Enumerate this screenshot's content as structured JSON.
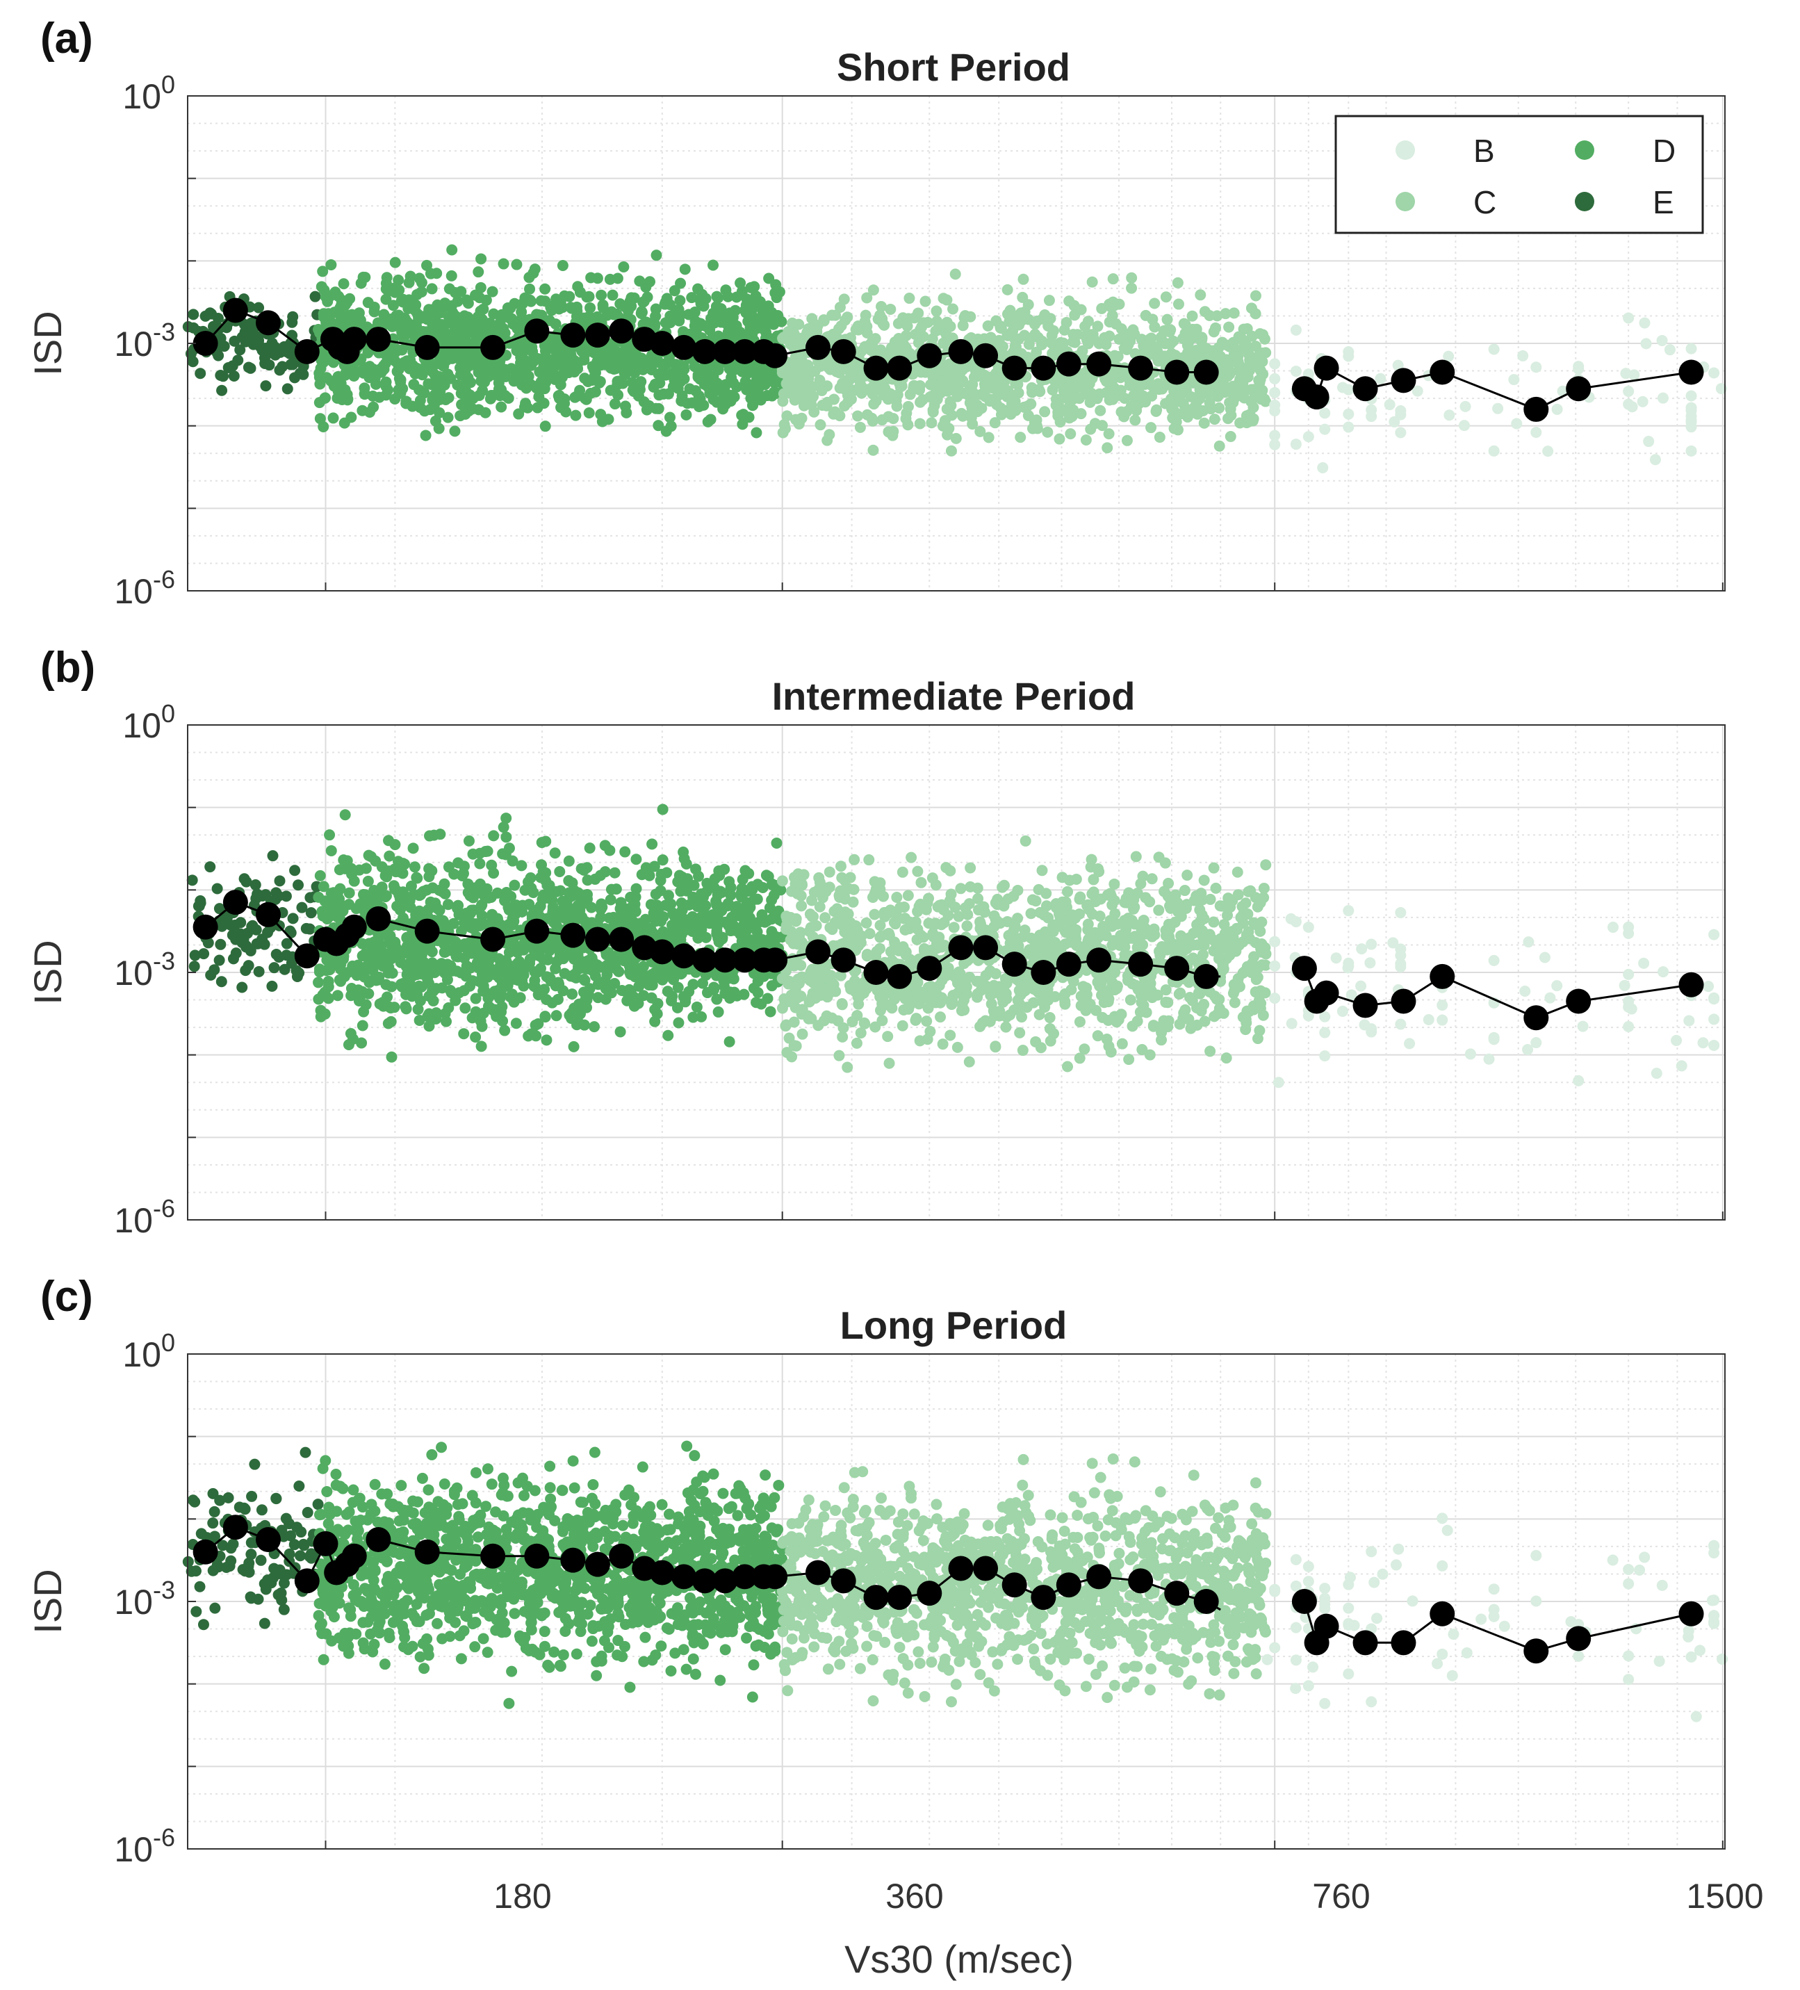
{
  "colors": {
    "B": "#d9ede0",
    "C": "#9fd5a8",
    "D": "#52ad62",
    "E": "#2e6b3c",
    "binned": "#000000"
  },
  "chart_data": [
    {
      "type": "scatter",
      "panel_label": "(a)",
      "title": "Short Period",
      "ylabel": "ISD",
      "ylim_exp": [
        -6,
        0
      ],
      "yticks": [
        {
          "base": "10",
          "exp": "0"
        },
        {
          "base": "10",
          "exp": "-3"
        },
        {
          "base": "10",
          "exp": "-6"
        }
      ],
      "scatter_clusters": [
        {
          "cls": "E",
          "x0": 146,
          "x1": 178,
          "center": -3.0,
          "spread": 0.55,
          "n": 110
        },
        {
          "cls": "D",
          "x0": 178,
          "x1": 360,
          "center": -3.05,
          "spread": 0.9,
          "n": 1400
        },
        {
          "cls": "C",
          "x0": 360,
          "x1": 750,
          "center": -3.3,
          "spread": 0.85,
          "n": 1200
        },
        {
          "cls": "B",
          "x0": 750,
          "x1": 1500,
          "center": -3.6,
          "spread": 0.85,
          "n": 90
        }
      ],
      "binned_series": [
        {
          "x": [
            150,
            157,
            165,
            175,
            182,
            184,
            186,
            188
          ],
          "log10_isd": [
            -3.0,
            -2.6,
            -2.75,
            -3.1,
            -2.95,
            -3.05,
            -3.1,
            -2.95
          ]
        },
        {
          "x": [
            195,
            210,
            232,
            248,
            262,
            272,
            282,
            292,
            300,
            310,
            320,
            330,
            340,
            350,
            356
          ],
          "log10_isd": [
            -2.95,
            -3.05,
            -3.05,
            -2.85,
            -2.9,
            -2.9,
            -2.85,
            -2.95,
            -3.0,
            -3.05,
            -3.1,
            -3.1,
            -3.1,
            -3.1,
            -3.15
          ],
          "tail": {
            "x": [
              356,
              380
            ],
            "log10_isd": [
              -3.15,
              -3.05
            ]
          }
        },
        {
          "x": [
            380,
            395,
            415,
            430,
            450,
            472,
            490,
            512,
            535,
            556,
            582,
            620,
            655,
            685
          ],
          "log10_isd": [
            -3.05,
            -3.1,
            -3.3,
            -3.3,
            -3.15,
            -3.1,
            -3.15,
            -3.3,
            -3.3,
            -3.25,
            -3.25,
            -3.3,
            -3.35,
            -3.35
          ]
        },
        {
          "x": [
            795,
            810,
            822,
            872,
            924,
            980,
            1130,
            1205,
            1430
          ],
          "log10_isd": [
            -3.55,
            -3.65,
            -3.3,
            -3.55,
            -3.45,
            -3.35,
            -3.8,
            -3.55,
            -3.35
          ]
        }
      ]
    },
    {
      "type": "scatter",
      "panel_label": "(b)",
      "title": "Intermediate Period",
      "ylabel": "ISD",
      "ylim_exp": [
        -6,
        0
      ],
      "yticks": [
        {
          "base": "10",
          "exp": "0"
        },
        {
          "base": "10",
          "exp": "-3"
        },
        {
          "base": "10",
          "exp": "-6"
        }
      ],
      "scatter_clusters": [
        {
          "cls": "E",
          "x0": 146,
          "x1": 178,
          "center": -2.4,
          "spread": 0.8,
          "n": 110
        },
        {
          "cls": "D",
          "x0": 178,
          "x1": 360,
          "center": -2.6,
          "spread": 1.15,
          "n": 1400
        },
        {
          "cls": "C",
          "x0": 360,
          "x1": 750,
          "center": -2.8,
          "spread": 1.15,
          "n": 1200
        },
        {
          "cls": "B",
          "x0": 750,
          "x1": 1500,
          "center": -3.2,
          "spread": 1.05,
          "n": 90
        }
      ],
      "binned_series": [
        {
          "x": [
            150,
            157,
            165,
            175,
            180,
            183,
            186,
            188
          ],
          "log10_isd": [
            -2.45,
            -2.15,
            -2.3,
            -2.8,
            -2.6,
            -2.65,
            -2.55,
            -2.45
          ]
        },
        {
          "x": [
            195,
            210,
            232,
            248,
            262,
            272,
            282,
            292,
            300,
            310,
            320,
            330,
            340,
            350,
            356
          ],
          "log10_isd": [
            -2.35,
            -2.5,
            -2.6,
            -2.5,
            -2.55,
            -2.6,
            -2.6,
            -2.7,
            -2.75,
            -2.8,
            -2.85,
            -2.85,
            -2.85,
            -2.85,
            -2.85
          ],
          "tail": {
            "x": [
              356,
              380
            ],
            "log10_isd": [
              -2.85,
              -2.75
            ]
          }
        },
        {
          "x": [
            380,
            395,
            415,
            430,
            450,
            472,
            490,
            512,
            535,
            556,
            582,
            620,
            655,
            685
          ],
          "log10_isd": [
            -2.75,
            -2.85,
            -3.0,
            -3.05,
            -2.95,
            -2.7,
            -2.7,
            -2.9,
            -3.0,
            -2.9,
            -2.85,
            -2.9,
            -2.95,
            -3.05
          ],
          "tail": {
            "x": [
              685,
              700
            ],
            "log10_isd": [
              -3.05,
              -3.05
            ]
          }
        },
        {
          "x": [
            795,
            810,
            822,
            872,
            924,
            980,
            1130,
            1205,
            1430
          ],
          "log10_isd": [
            -2.95,
            -3.35,
            -3.25,
            -3.4,
            -3.35,
            -3.05,
            -3.55,
            -3.35,
            -3.15
          ]
        }
      ]
    },
    {
      "type": "scatter",
      "panel_label": "(c)",
      "title": "Long Period",
      "ylabel": "ISD",
      "ylim_exp": [
        -6,
        0
      ],
      "yticks": [
        {
          "base": "10",
          "exp": "0"
        },
        {
          "base": "10",
          "exp": "-3"
        },
        {
          "base": "10",
          "exp": "-6"
        }
      ],
      "scatter_clusters": [
        {
          "cls": "E",
          "x0": 146,
          "x1": 178,
          "center": -2.4,
          "spread": 0.9,
          "n": 110
        },
        {
          "cls": "D",
          "x0": 178,
          "x1": 360,
          "center": -2.6,
          "spread": 1.15,
          "n": 1400
        },
        {
          "cls": "C",
          "x0": 360,
          "x1": 750,
          "center": -2.8,
          "spread": 1.2,
          "n": 1200
        },
        {
          "cls": "B",
          "x0": 750,
          "x1": 1500,
          "center": -3.2,
          "spread": 1.15,
          "n": 90
        }
      ],
      "binned_series": [
        {
          "x": [
            150,
            157,
            165,
            175,
            180,
            183,
            186,
            188
          ],
          "log10_isd": [
            -2.4,
            -2.1,
            -2.25,
            -2.75,
            -2.3,
            -2.65,
            -2.55,
            -2.45
          ]
        },
        {
          "x": [
            195,
            210,
            232,
            248,
            262,
            272,
            282,
            292,
            300,
            310,
            320,
            330,
            340,
            350,
            356
          ],
          "log10_isd": [
            -2.25,
            -2.4,
            -2.45,
            -2.45,
            -2.5,
            -2.55,
            -2.45,
            -2.6,
            -2.65,
            -2.7,
            -2.75,
            -2.75,
            -2.7,
            -2.7,
            -2.7
          ],
          "tail": {
            "x": [
              356,
              380
            ],
            "log10_isd": [
              -2.7,
              -2.65
            ]
          }
        },
        {
          "x": [
            380,
            395,
            415,
            430,
            450,
            472,
            490,
            512,
            535,
            556,
            582,
            620,
            655,
            685
          ],
          "log10_isd": [
            -2.65,
            -2.75,
            -2.95,
            -2.95,
            -2.9,
            -2.6,
            -2.6,
            -2.8,
            -2.95,
            -2.8,
            -2.7,
            -2.75,
            -2.9,
            -3.0
          ],
          "tail": {
            "x": [
              685,
              700
            ],
            "log10_isd": [
              -3.0,
              -3.1
            ]
          }
        },
        {
          "x": [
            795,
            810,
            822,
            872,
            924,
            980,
            1130,
            1205,
            1430
          ],
          "log10_isd": [
            -3.0,
            -3.5,
            -3.3,
            -3.5,
            -3.5,
            -3.15,
            -3.6,
            -3.45,
            -3.15
          ]
        }
      ]
    }
  ],
  "x_axis": {
    "label": "Vs30 (m/sec)",
    "ticks": [
      180,
      360,
      760,
      1500
    ],
    "tick_labels": [
      "180",
      "360",
      "760",
      "1500"
    ],
    "xlim": [
      146,
      1505
    ]
  },
  "legend": {
    "entries": [
      {
        "label": "B",
        "cls": "B"
      },
      {
        "label": "C",
        "cls": "C"
      },
      {
        "label": "D",
        "cls": "D"
      },
      {
        "label": "E",
        "cls": "E"
      }
    ]
  }
}
